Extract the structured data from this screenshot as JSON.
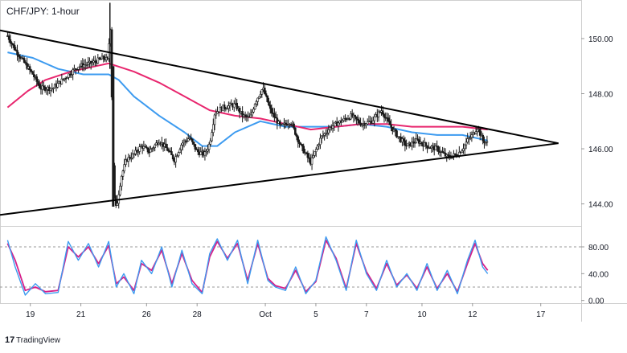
{
  "title": "CHF/JPY: 1-hour",
  "brand": "TradingView",
  "colors": {
    "ma_fast": "#3d9bf0",
    "ma_slow": "#e8266e",
    "stoch_k": "#3d9bf0",
    "stoch_d": "#d6208a",
    "candle": "#1a1a1a",
    "trendline": "#000000",
    "grid": "#cccccc"
  },
  "chart_data": {
    "type": "candlestick",
    "instrument": "CHF/JPY",
    "timeframe": "1-hour",
    "x_ticks": [
      {
        "label": "19",
        "pos": 0.9
      },
      {
        "label": "21",
        "pos": 2.9
      },
      {
        "label": "26",
        "pos": 5.5
      },
      {
        "label": "28",
        "pos": 7.5
      },
      {
        "label": "Oct",
        "pos": 10.2
      },
      {
        "label": "5",
        "pos": 12.2
      },
      {
        "label": "7",
        "pos": 14.2
      },
      {
        "label": "10",
        "pos": 16.4
      },
      {
        "label": "12",
        "pos": 18.4
      },
      {
        "label": "17",
        "pos": 21.1
      }
    ],
    "xlim": [
      -0.3,
      22.7
    ],
    "price_axis": {
      "ticks": [
        144.0,
        146.0,
        148.0,
        150.0
      ],
      "labels": [
        "144.00",
        "146.00",
        "148.00",
        "150.00"
      ],
      "ylim": [
        143.2,
        151.4
      ]
    },
    "price_path": [
      [
        0.0,
        150.1
      ],
      [
        0.3,
        149.6
      ],
      [
        0.6,
        149.2
      ],
      [
        1.0,
        148.7
      ],
      [
        1.3,
        148.2
      ],
      [
        1.8,
        148.2
      ],
      [
        2.3,
        148.6
      ],
      [
        2.8,
        149.0
      ],
      [
        3.3,
        149.1
      ],
      [
        3.8,
        149.3
      ],
      [
        4.0,
        149.2
      ],
      [
        4.05,
        151.3
      ],
      [
        4.15,
        146.8
      ],
      [
        4.2,
        144.5
      ],
      [
        4.3,
        143.8
      ],
      [
        4.5,
        145.0
      ],
      [
        4.7,
        145.6
      ],
      [
        5.0,
        145.8
      ],
      [
        5.3,
        146.1
      ],
      [
        5.6,
        145.9
      ],
      [
        6.0,
        146.3
      ],
      [
        6.3,
        146.0
      ],
      [
        6.6,
        145.6
      ],
      [
        6.9,
        146.2
      ],
      [
        7.2,
        146.4
      ],
      [
        7.5,
        145.9
      ],
      [
        7.8,
        145.8
      ],
      [
        8.0,
        146.2
      ],
      [
        8.2,
        147.3
      ],
      [
        8.5,
        147.5
      ],
      [
        9.0,
        147.6
      ],
      [
        9.3,
        147.2
      ],
      [
        9.6,
        147.1
      ],
      [
        9.8,
        147.7
      ],
      [
        10.1,
        148.2
      ],
      [
        10.4,
        147.4
      ],
      [
        10.8,
        146.8
      ],
      [
        11.2,
        147.0
      ],
      [
        11.6,
        146.1
      ],
      [
        12.0,
        145.5
      ],
      [
        12.4,
        146.4
      ],
      [
        12.8,
        146.8
      ],
      [
        13.2,
        147.0
      ],
      [
        13.6,
        147.2
      ],
      [
        14.0,
        146.9
      ],
      [
        14.4,
        147.0
      ],
      [
        14.8,
        147.4
      ],
      [
        15.1,
        146.9
      ],
      [
        15.4,
        146.5
      ],
      [
        15.8,
        146.1
      ],
      [
        16.2,
        146.3
      ],
      [
        16.6,
        146.1
      ],
      [
        17.0,
        146.0
      ],
      [
        17.4,
        145.7
      ],
      [
        17.8,
        145.8
      ],
      [
        18.0,
        146.0
      ],
      [
        18.2,
        146.3
      ],
      [
        18.4,
        146.5
      ],
      [
        18.6,
        146.8
      ],
      [
        18.8,
        146.3
      ],
      [
        19.0,
        146.2
      ]
    ],
    "moving_averages": [
      {
        "color": "#3d9bf0",
        "points": [
          [
            0.0,
            149.5
          ],
          [
            1.0,
            149.3
          ],
          [
            2.0,
            148.9
          ],
          [
            3.0,
            148.7
          ],
          [
            4.0,
            148.7
          ],
          [
            4.4,
            148.5
          ],
          [
            5.0,
            147.9
          ],
          [
            6.0,
            147.2
          ],
          [
            7.0,
            146.6
          ],
          [
            7.7,
            146.1
          ],
          [
            8.3,
            146.1
          ],
          [
            9.0,
            146.6
          ],
          [
            10.0,
            147.0
          ],
          [
            11.0,
            146.8
          ],
          [
            12.0,
            146.8
          ],
          [
            13.0,
            146.8
          ],
          [
            14.0,
            146.9
          ],
          [
            15.0,
            146.8
          ],
          [
            16.0,
            146.6
          ],
          [
            17.0,
            146.5
          ],
          [
            18.0,
            146.5
          ],
          [
            19.0,
            146.3
          ]
        ]
      },
      {
        "color": "#e8266e",
        "points": [
          [
            0.0,
            147.5
          ],
          [
            0.8,
            148.1
          ],
          [
            1.5,
            148.5
          ],
          [
            2.5,
            148.8
          ],
          [
            3.5,
            149.0
          ],
          [
            4.0,
            149.1
          ],
          [
            5.0,
            148.8
          ],
          [
            6.0,
            148.4
          ],
          [
            7.0,
            147.9
          ],
          [
            8.0,
            147.4
          ],
          [
            9.0,
            147.2
          ],
          [
            10.0,
            147.1
          ],
          [
            11.0,
            146.9
          ],
          [
            12.0,
            146.7
          ],
          [
            13.0,
            146.8
          ],
          [
            14.0,
            146.9
          ],
          [
            15.0,
            146.9
          ],
          [
            16.0,
            146.8
          ],
          [
            17.0,
            146.8
          ],
          [
            18.0,
            146.8
          ],
          [
            19.0,
            146.7
          ]
        ]
      }
    ],
    "trendlines": [
      {
        "from": [
          -0.3,
          150.3
        ],
        "to": [
          21.8,
          146.2
        ]
      },
      {
        "from": [
          -0.3,
          143.6
        ],
        "to": [
          21.8,
          146.2
        ]
      }
    ],
    "stochastic": {
      "ticks": [
        0,
        40,
        80
      ],
      "labels": [
        "0.00",
        "40.00",
        "80.00"
      ],
      "levels": [
        20,
        80
      ],
      "ylim": [
        -4,
        110
      ],
      "k": [
        [
          0.0,
          90
        ],
        [
          0.3,
          50
        ],
        [
          0.7,
          8
        ],
        [
          1.1,
          25
        ],
        [
          1.5,
          10
        ],
        [
          2.0,
          12
        ],
        [
          2.4,
          88
        ],
        [
          2.8,
          60
        ],
        [
          3.2,
          85
        ],
        [
          3.6,
          50
        ],
        [
          4.0,
          88
        ],
        [
          4.3,
          20
        ],
        [
          4.6,
          40
        ],
        [
          5.0,
          10
        ],
        [
          5.3,
          60
        ],
        [
          5.7,
          40
        ],
        [
          6.1,
          80
        ],
        [
          6.5,
          20
        ],
        [
          6.9,
          75
        ],
        [
          7.3,
          25
        ],
        [
          7.7,
          10
        ],
        [
          8.0,
          70
        ],
        [
          8.3,
          92
        ],
        [
          8.7,
          60
        ],
        [
          9.1,
          90
        ],
        [
          9.5,
          25
        ],
        [
          9.9,
          90
        ],
        [
          10.3,
          30
        ],
        [
          10.6,
          20
        ],
        [
          11.0,
          15
        ],
        [
          11.4,
          50
        ],
        [
          11.8,
          10
        ],
        [
          12.2,
          30
        ],
        [
          12.6,
          95
        ],
        [
          13.0,
          60
        ],
        [
          13.4,
          15
        ],
        [
          13.8,
          90
        ],
        [
          14.2,
          40
        ],
        [
          14.6,
          15
        ],
        [
          15.0,
          60
        ],
        [
          15.4,
          20
        ],
        [
          15.8,
          40
        ],
        [
          16.2,
          15
        ],
        [
          16.6,
          55
        ],
        [
          17.0,
          15
        ],
        [
          17.4,
          45
        ],
        [
          17.8,
          10
        ],
        [
          18.2,
          60
        ],
        [
          18.5,
          90
        ],
        [
          18.8,
          50
        ],
        [
          19.0,
          40
        ]
      ],
      "d": [
        [
          0.0,
          85
        ],
        [
          0.3,
          60
        ],
        [
          0.7,
          15
        ],
        [
          1.1,
          20
        ],
        [
          1.5,
          13
        ],
        [
          2.0,
          15
        ],
        [
          2.4,
          80
        ],
        [
          2.8,
          65
        ],
        [
          3.2,
          80
        ],
        [
          3.6,
          55
        ],
        [
          4.0,
          82
        ],
        [
          4.3,
          25
        ],
        [
          4.6,
          35
        ],
        [
          5.0,
          15
        ],
        [
          5.3,
          55
        ],
        [
          5.7,
          45
        ],
        [
          6.1,
          75
        ],
        [
          6.5,
          25
        ],
        [
          6.9,
          70
        ],
        [
          7.3,
          30
        ],
        [
          7.7,
          12
        ],
        [
          8.0,
          65
        ],
        [
          8.3,
          88
        ],
        [
          8.7,
          63
        ],
        [
          9.1,
          85
        ],
        [
          9.5,
          30
        ],
        [
          9.9,
          85
        ],
        [
          10.3,
          33
        ],
        [
          10.6,
          22
        ],
        [
          11.0,
          18
        ],
        [
          11.4,
          45
        ],
        [
          11.8,
          13
        ],
        [
          12.2,
          28
        ],
        [
          12.6,
          90
        ],
        [
          13.0,
          63
        ],
        [
          13.4,
          18
        ],
        [
          13.8,
          85
        ],
        [
          14.2,
          43
        ],
        [
          14.6,
          18
        ],
        [
          15.0,
          55
        ],
        [
          15.4,
          23
        ],
        [
          15.8,
          38
        ],
        [
          16.2,
          18
        ],
        [
          16.6,
          50
        ],
        [
          17.0,
          18
        ],
        [
          17.4,
          40
        ],
        [
          17.8,
          13
        ],
        [
          18.2,
          55
        ],
        [
          18.5,
          85
        ],
        [
          18.8,
          55
        ],
        [
          19.0,
          45
        ]
      ]
    }
  }
}
